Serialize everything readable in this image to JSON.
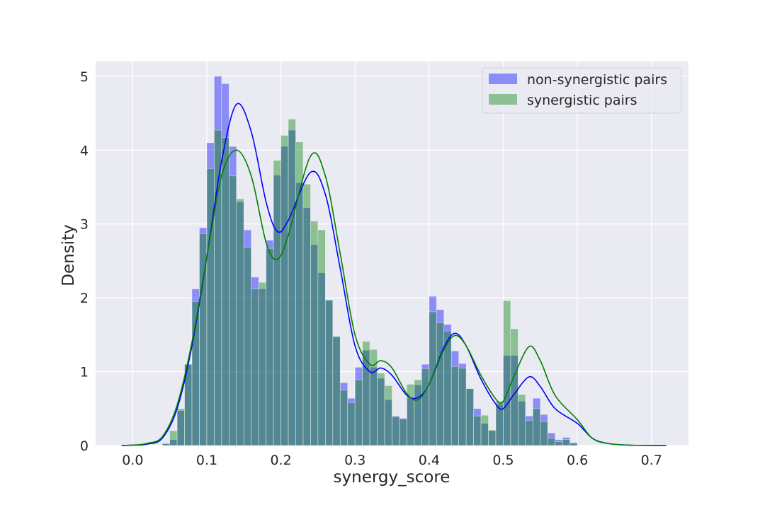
{
  "chart_data": {
    "type": "histogram",
    "xlabel": "synergy_score",
    "ylabel": "Density",
    "xlim": [
      -0.05,
      0.75
    ],
    "ylim": [
      0,
      5.2
    ],
    "x_ticks": [
      "0.0",
      "0.1",
      "0.2",
      "0.3",
      "0.4",
      "0.5",
      "0.6",
      "0.7"
    ],
    "y_ticks": [
      "0",
      "1",
      "2",
      "3",
      "4",
      "5"
    ],
    "grid": true,
    "legend_position": "upper right",
    "colors": {
      "non_synergistic": "#0000ff",
      "synergistic": "#008000",
      "overlap": "#53797c",
      "background": "#eaeaf2",
      "grid": "#ffffff"
    },
    "bin_width": 0.01,
    "bin_start": 0.04,
    "series": [
      {
        "name": "non-synergistic pairs",
        "hist": [
          0.02,
          0.08,
          0.47,
          1.1,
          2.12,
          2.95,
          4.1,
          5.0,
          4.9,
          4.05,
          3.3,
          2.92,
          2.28,
          2.12,
          2.78,
          3.66,
          4.05,
          4.27,
          3.56,
          3.22,
          2.72,
          2.34,
          1.97,
          1.47,
          0.85,
          0.64,
          1.06,
          1.29,
          1.06,
          0.91,
          0.62,
          0.4,
          0.37,
          0.65,
          0.82,
          1.1,
          2.02,
          1.84,
          1.64,
          1.28,
          1.11,
          0.77,
          0.5,
          0.3,
          0.2,
          0.56,
          1.22,
          1.22,
          0.6,
          0.4,
          0.64,
          0.42,
          0.17,
          0.08,
          0.11,
          0.04
        ],
        "kde": [
          [
            -0.015,
            0.0
          ],
          [
            0.0,
            0.005
          ],
          [
            0.02,
            0.02
          ],
          [
            0.04,
            0.1
          ],
          [
            0.06,
            0.5
          ],
          [
            0.08,
            1.35
          ],
          [
            0.1,
            2.55
          ],
          [
            0.12,
            3.85
          ],
          [
            0.14,
            4.62
          ],
          [
            0.16,
            4.25
          ],
          [
            0.18,
            3.3
          ],
          [
            0.195,
            2.9
          ],
          [
            0.21,
            3.05
          ],
          [
            0.24,
            3.7
          ],
          [
            0.26,
            3.4
          ],
          [
            0.28,
            2.4
          ],
          [
            0.3,
            1.35
          ],
          [
            0.32,
            1.0
          ],
          [
            0.335,
            1.05
          ],
          [
            0.35,
            0.95
          ],
          [
            0.37,
            0.68
          ],
          [
            0.385,
            0.65
          ],
          [
            0.4,
            0.83
          ],
          [
            0.42,
            1.33
          ],
          [
            0.435,
            1.52
          ],
          [
            0.45,
            1.35
          ],
          [
            0.47,
            0.9
          ],
          [
            0.49,
            0.56
          ],
          [
            0.5,
            0.5
          ],
          [
            0.515,
            0.7
          ],
          [
            0.535,
            0.93
          ],
          [
            0.55,
            0.8
          ],
          [
            0.57,
            0.5
          ],
          [
            0.6,
            0.3
          ],
          [
            0.62,
            0.1
          ],
          [
            0.64,
            0.03
          ],
          [
            0.67,
            0.005
          ],
          [
            0.72,
            0.0
          ]
        ]
      },
      {
        "name": "synergistic pairs",
        "hist": [
          0.03,
          0.2,
          0.5,
          1.1,
          1.95,
          2.87,
          3.75,
          4.27,
          4.17,
          3.65,
          3.34,
          2.68,
          2.12,
          2.21,
          2.67,
          3.86,
          4.2,
          4.42,
          4.11,
          3.54,
          3.04,
          2.92,
          1.97,
          1.48,
          0.75,
          0.58,
          0.89,
          1.41,
          1.3,
          0.98,
          0.81,
          0.39,
          0.36,
          0.83,
          0.89,
          1.04,
          1.81,
          1.66,
          1.55,
          1.07,
          1.05,
          0.77,
          0.4,
          0.41,
          0.21,
          0.6,
          1.96,
          1.58,
          0.69,
          0.34,
          0.5,
          0.32,
          0.1,
          0.05,
          0.08,
          0.03
        ],
        "kde": [
          [
            -0.015,
            0.0
          ],
          [
            0.0,
            0.005
          ],
          [
            0.02,
            0.03
          ],
          [
            0.04,
            0.12
          ],
          [
            0.06,
            0.55
          ],
          [
            0.08,
            1.4
          ],
          [
            0.1,
            2.55
          ],
          [
            0.12,
            3.65
          ],
          [
            0.14,
            4.0
          ],
          [
            0.16,
            3.65
          ],
          [
            0.18,
            2.75
          ],
          [
            0.195,
            2.52
          ],
          [
            0.21,
            2.85
          ],
          [
            0.24,
            3.92
          ],
          [
            0.26,
            3.65
          ],
          [
            0.28,
            2.6
          ],
          [
            0.3,
            1.5
          ],
          [
            0.32,
            1.1
          ],
          [
            0.335,
            1.15
          ],
          [
            0.35,
            1.05
          ],
          [
            0.37,
            0.7
          ],
          [
            0.385,
            0.62
          ],
          [
            0.4,
            0.83
          ],
          [
            0.42,
            1.3
          ],
          [
            0.435,
            1.49
          ],
          [
            0.45,
            1.35
          ],
          [
            0.47,
            0.95
          ],
          [
            0.49,
            0.63
          ],
          [
            0.5,
            0.6
          ],
          [
            0.515,
            0.95
          ],
          [
            0.535,
            1.34
          ],
          [
            0.55,
            1.15
          ],
          [
            0.57,
            0.68
          ],
          [
            0.6,
            0.35
          ],
          [
            0.62,
            0.1
          ],
          [
            0.64,
            0.03
          ],
          [
            0.67,
            0.005
          ],
          [
            0.72,
            0.0
          ]
        ]
      }
    ]
  }
}
